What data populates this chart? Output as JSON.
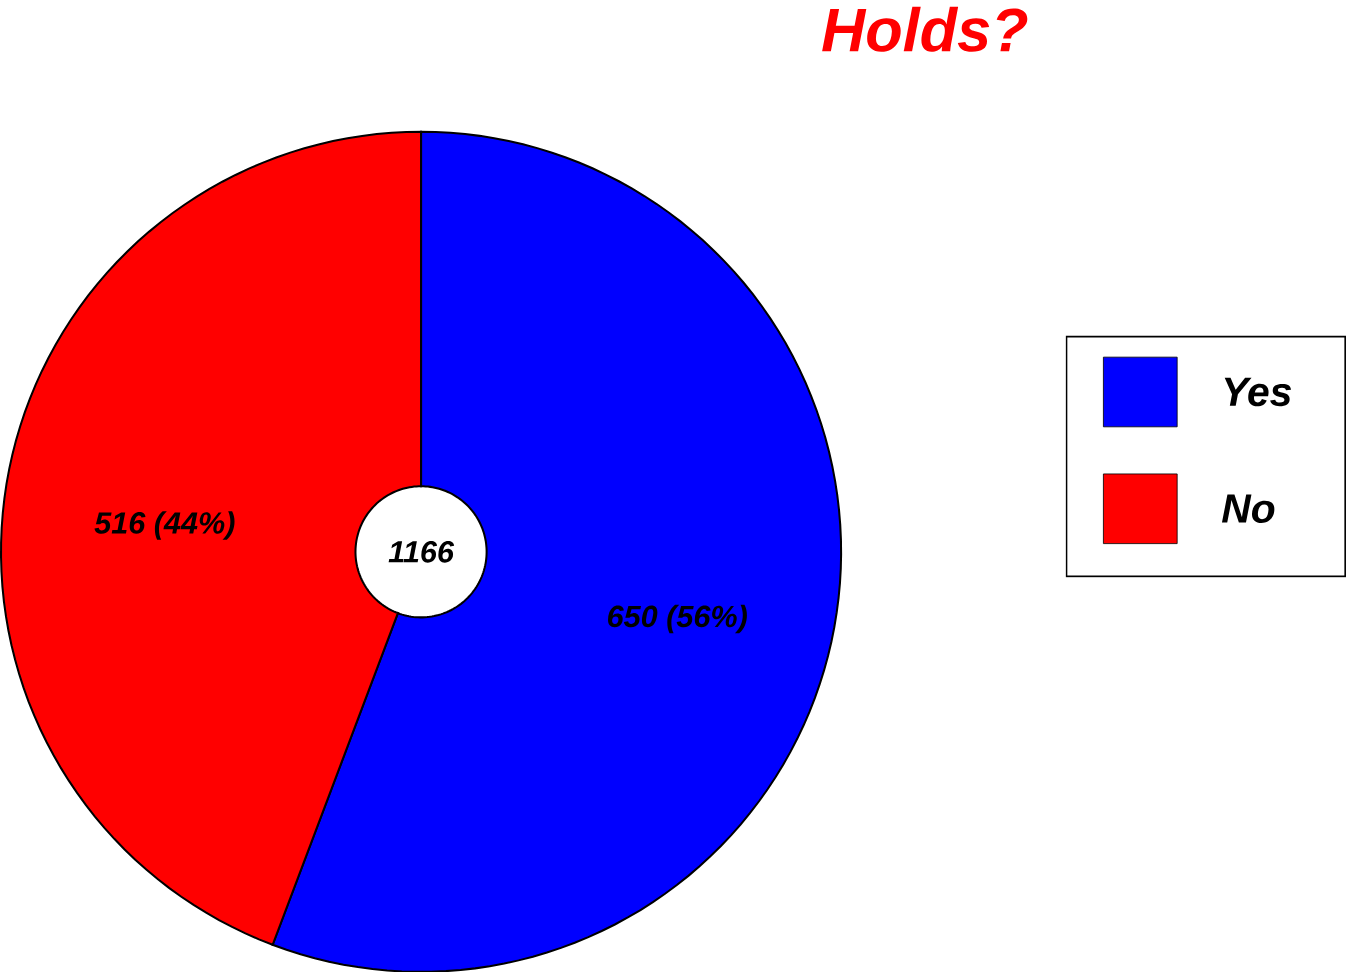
{
  "chart_data": {
    "type": "donut",
    "title": "Holds?",
    "categories": [
      "Yes",
      "No"
    ],
    "values": [
      650,
      516
    ],
    "value_labels": [
      "650 (56%)",
      "516 (44%)"
    ],
    "colors": [
      "#0000ff",
      "#ff0000"
    ],
    "annotations": [
      "1166"
    ],
    "legend": "right"
  }
}
